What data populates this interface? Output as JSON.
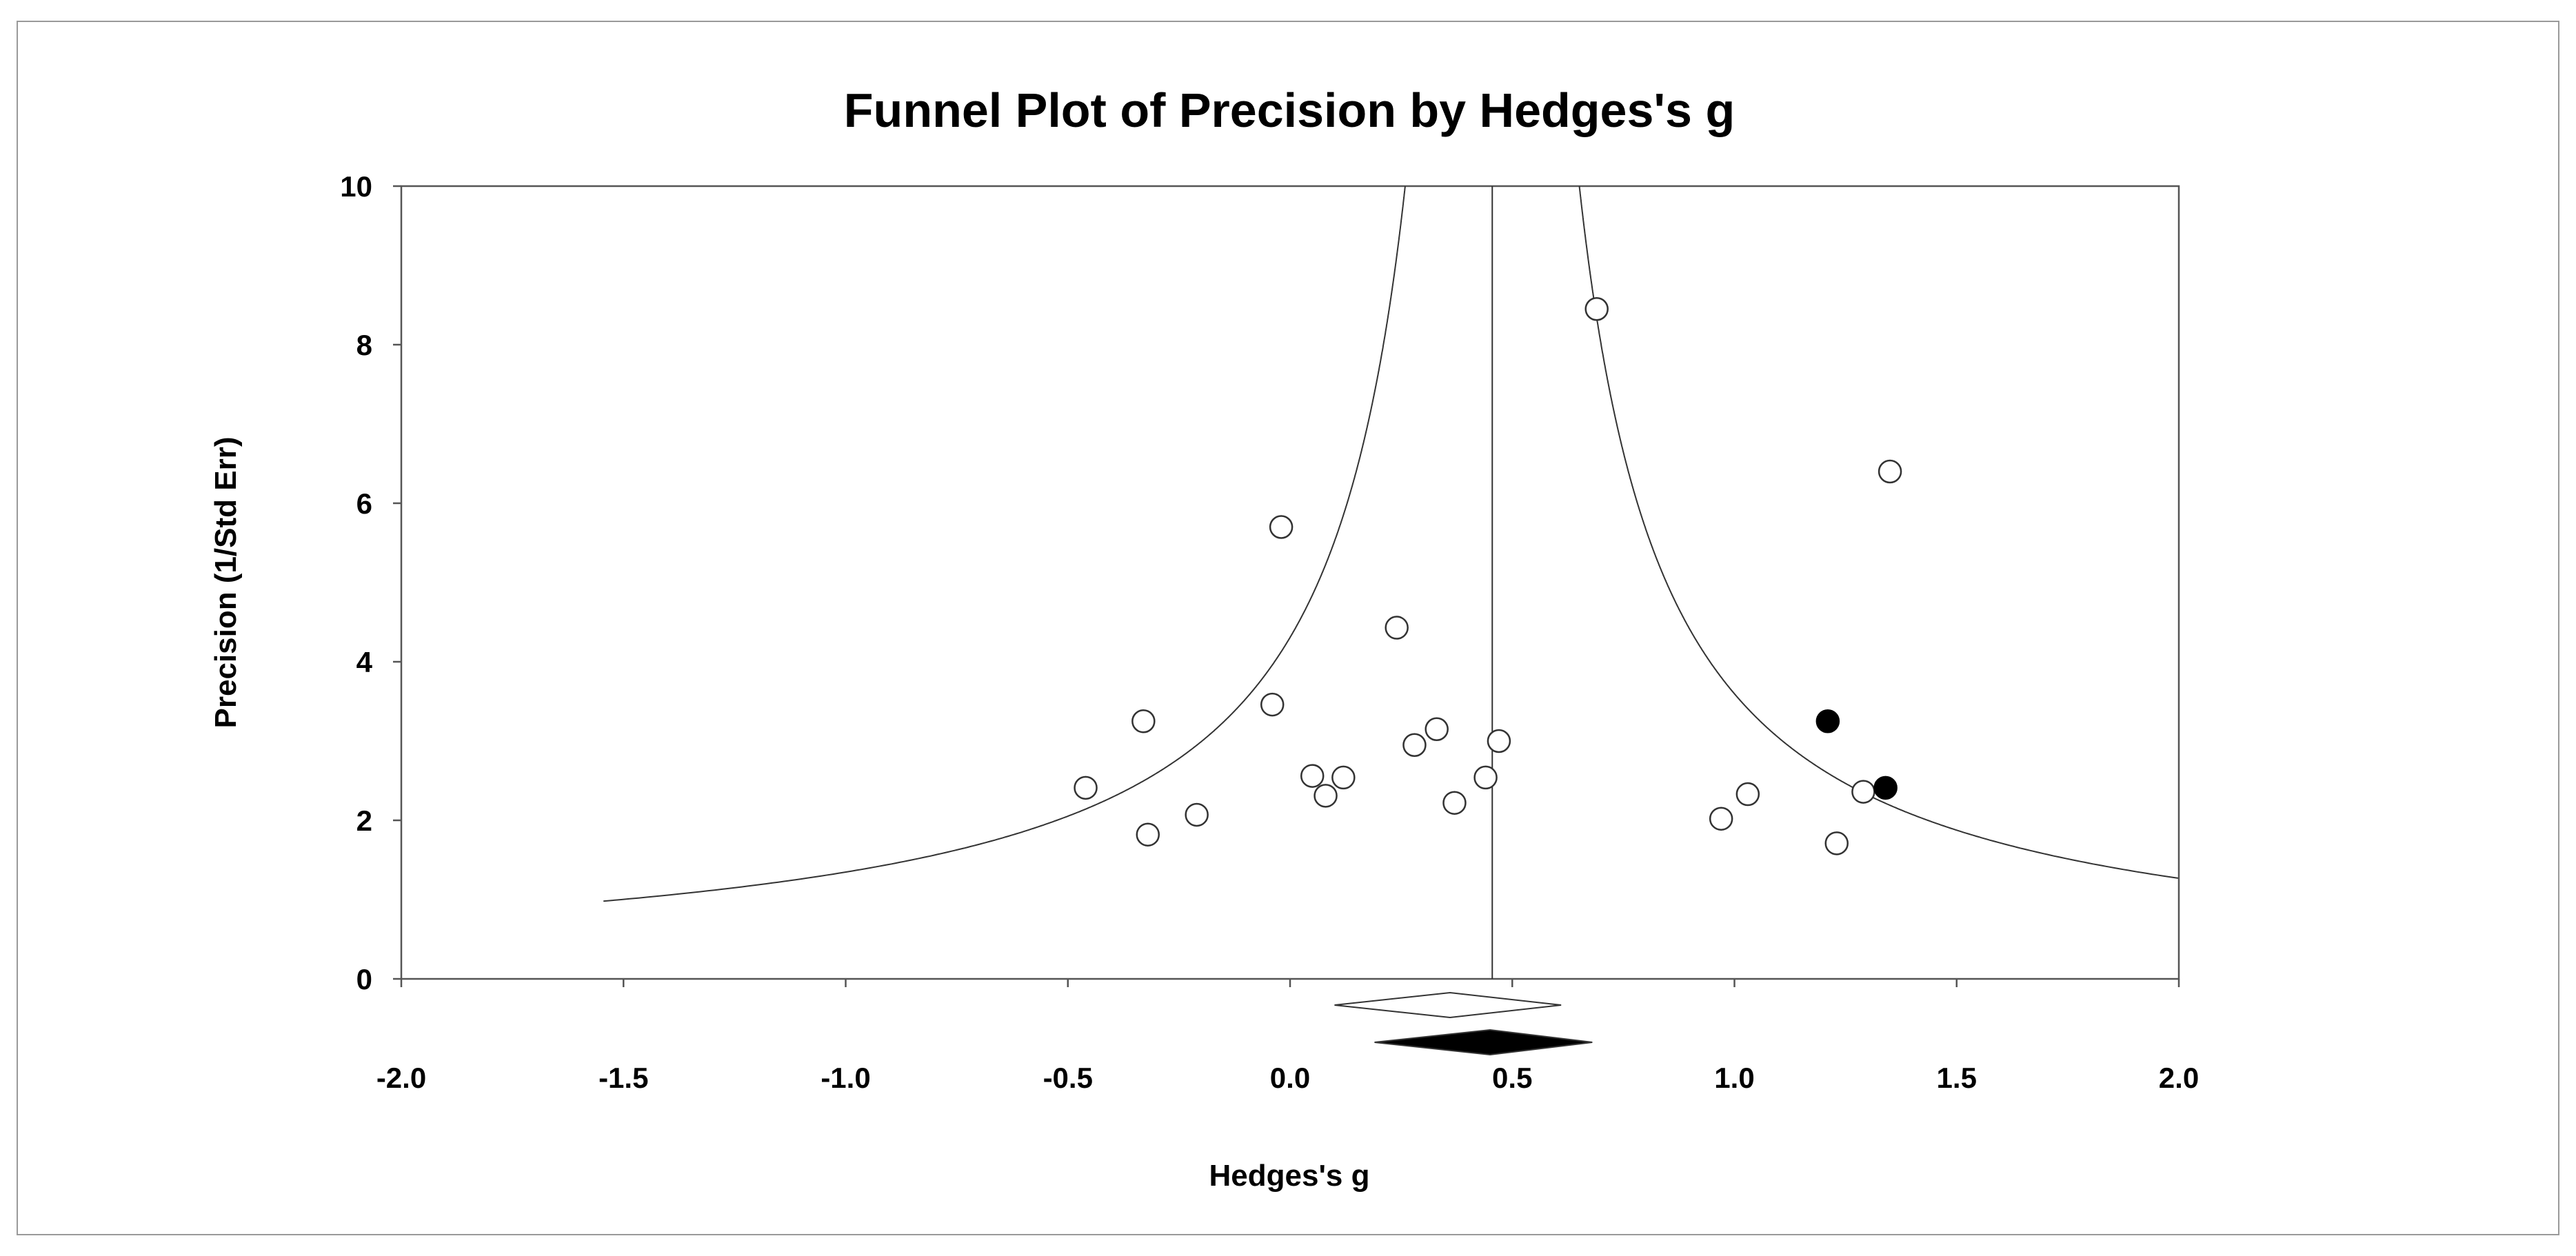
{
  "chart_data": {
    "type": "scatter",
    "title": "Funnel Plot of Precision by Hedges's g",
    "xlabel": "Hedges's g",
    "ylabel": "Precision (1/Std Err)",
    "xlim": [
      -2.0,
      2.0
    ],
    "ylim": [
      0,
      10
    ],
    "x_ticks": [
      "-2.0",
      "-1.5",
      "-1.0",
      "-0.5",
      "0.0",
      "0.5",
      "1.0",
      "1.5",
      "2.0"
    ],
    "y_ticks": [
      "0",
      "2",
      "4",
      "6",
      "8",
      "10"
    ],
    "grid": false,
    "summary_effect": 0.455,
    "funnel": {
      "center": 0.455,
      "z": 1.96
    },
    "observed_studies": [
      {
        "x": 0.69,
        "y": 8.45
      },
      {
        "x": 1.35,
        "y": 6.4
      },
      {
        "x": -0.02,
        "y": 5.7
      },
      {
        "x": 0.24,
        "y": 4.43
      },
      {
        "x": -0.04,
        "y": 3.46
      },
      {
        "x": -0.33,
        "y": 3.25
      },
      {
        "x": 0.33,
        "y": 3.15
      },
      {
        "x": 0.47,
        "y": 3.0
      },
      {
        "x": 0.28,
        "y": 2.95
      },
      {
        "x": 0.05,
        "y": 2.56
      },
      {
        "x": 0.12,
        "y": 2.54
      },
      {
        "x": 0.44,
        "y": 2.54
      },
      {
        "x": -0.46,
        "y": 2.41
      },
      {
        "x": 1.29,
        "y": 2.36
      },
      {
        "x": 1.03,
        "y": 2.33
      },
      {
        "x": 0.08,
        "y": 2.31
      },
      {
        "x": 0.37,
        "y": 2.22
      },
      {
        "x": -0.21,
        "y": 2.07
      },
      {
        "x": 0.97,
        "y": 2.02
      },
      {
        "x": -0.32,
        "y": 1.82
      },
      {
        "x": 1.23,
        "y": 1.71
      }
    ],
    "imputed_studies": [
      {
        "x": 1.21,
        "y": 3.25
      },
      {
        "x": 1.34,
        "y": 2.41
      }
    ],
    "observed_summary": {
      "center": 0.36,
      "lower": 0.1,
      "upper": 0.61
    },
    "adjusted_summary": {
      "center": 0.45,
      "lower": 0.19,
      "upper": 0.68
    }
  }
}
